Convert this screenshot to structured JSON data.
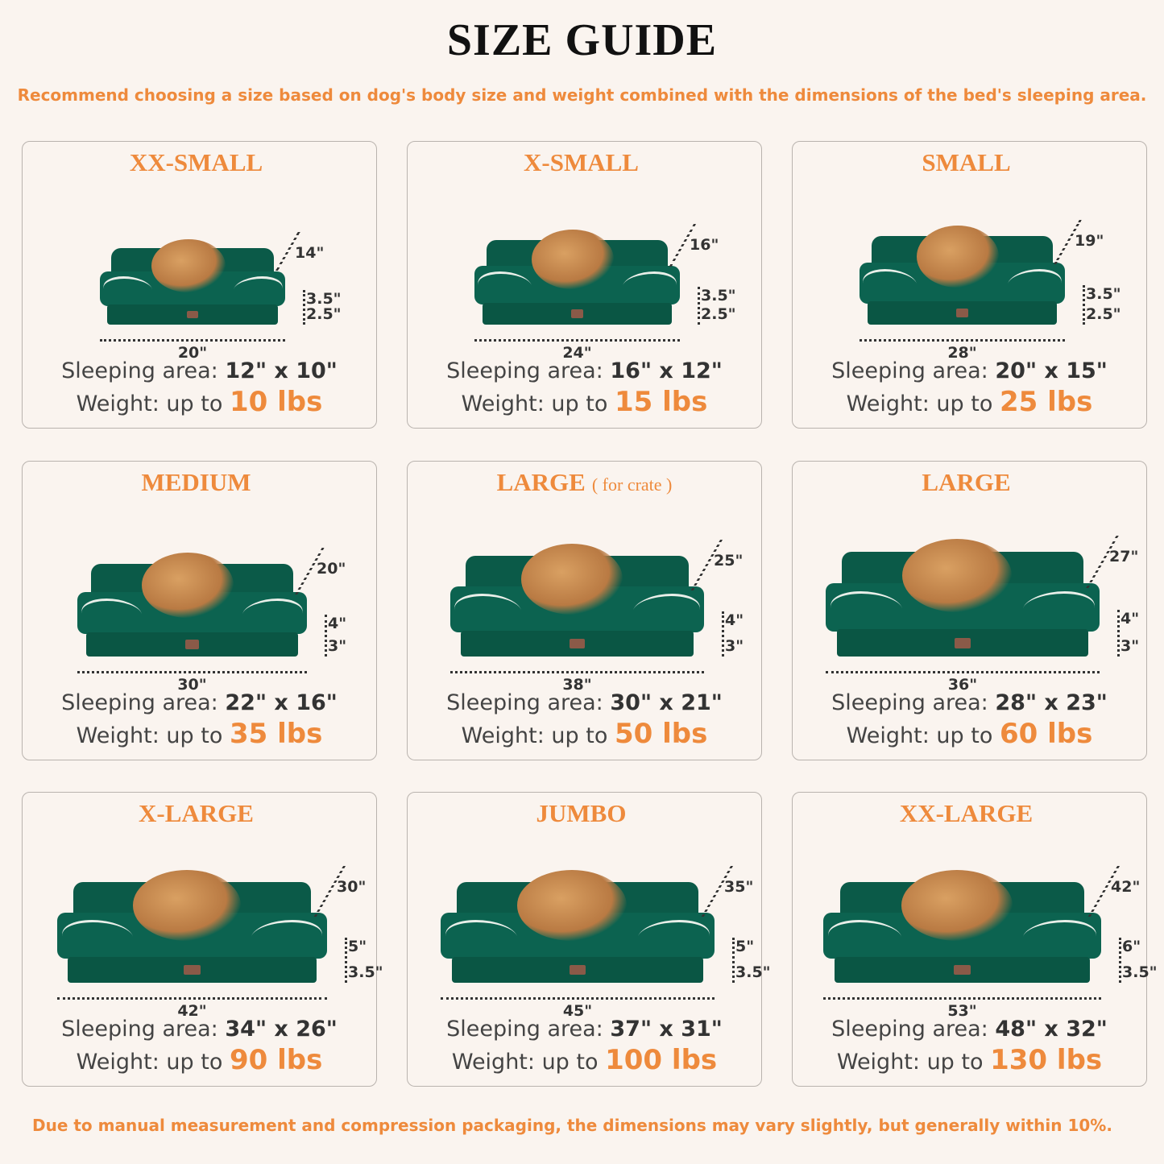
{
  "title": "SIZE GUIDE",
  "subtitle": "Recommend choosing a size based on dog's body size and weight combined with the dimensions of the bed's sleeping area.",
  "footnote": "Due to manual measurement and compression packaging, the dimensions may vary slightly, but generally within 10%.",
  "colors": {
    "accent": "#ee8a3c",
    "bed_green": "#0b5a48",
    "background": "#faf4ef"
  },
  "sleeping_label": "Sleeping area:",
  "weight_label": "Weight:  up to",
  "sizes": [
    {
      "name": "XX-SMALL",
      "note": "",
      "pet": "cat",
      "depth": "14\"",
      "base_h": "3.5\"",
      "bottom_h": "2.5\"",
      "width": "20\"",
      "sleeping_area": "12\" x 10\"",
      "weight": "10 lbs"
    },
    {
      "name": "X-SMALL",
      "note": "",
      "pet": "dog",
      "depth": "16\"",
      "base_h": "3.5\"",
      "bottom_h": "2.5\"",
      "width": "24\"",
      "sleeping_area": "16\" x 12\"",
      "weight": "15 lbs"
    },
    {
      "name": "SMALL",
      "note": "",
      "pet": "dog",
      "depth": "19\"",
      "base_h": "3.5\"",
      "bottom_h": "2.5\"",
      "width": "28\"",
      "sleeping_area": "20\" x 15\"",
      "weight": "25 lbs"
    },
    {
      "name": "MEDIUM",
      "note": "",
      "pet": "dog",
      "depth": "20\"",
      "base_h": "4\"",
      "bottom_h": "3\"",
      "width": "30\"",
      "sleeping_area": "22\" x 16\"",
      "weight": "35 lbs"
    },
    {
      "name": "LARGE",
      "note": "( for crate )",
      "pet": "dog",
      "depth": "25\"",
      "base_h": "4\"",
      "bottom_h": "3\"",
      "width": "38\"",
      "sleeping_area": "30\" x 21\"",
      "weight": "50 lbs"
    },
    {
      "name": "LARGE",
      "note": "",
      "pet": "dog",
      "depth": "27\"",
      "base_h": "4\"",
      "bottom_h": "3\"",
      "width": "36\"",
      "sleeping_area": "28\" x 23\"",
      "weight": "60 lbs"
    },
    {
      "name": "X-LARGE",
      "note": "",
      "pet": "dog",
      "depth": "30\"",
      "base_h": "5\"",
      "bottom_h": "3.5\"",
      "width": "42\"",
      "sleeping_area": "34\" x 26\"",
      "weight": "90 lbs"
    },
    {
      "name": "JUMBO",
      "note": "",
      "pet": "dog",
      "depth": "35\"",
      "base_h": "5\"",
      "bottom_h": "3.5\"",
      "width": "45\"",
      "sleeping_area": "37\" x 31\"",
      "weight": "100 lbs"
    },
    {
      "name": "XX-LARGE",
      "note": "",
      "pet": "dog",
      "depth": "42\"",
      "base_h": "6\"",
      "bottom_h": "3.5\"",
      "width": "53\"",
      "sleeping_area": "48\" x 32\"",
      "weight": "130 lbs"
    }
  ]
}
